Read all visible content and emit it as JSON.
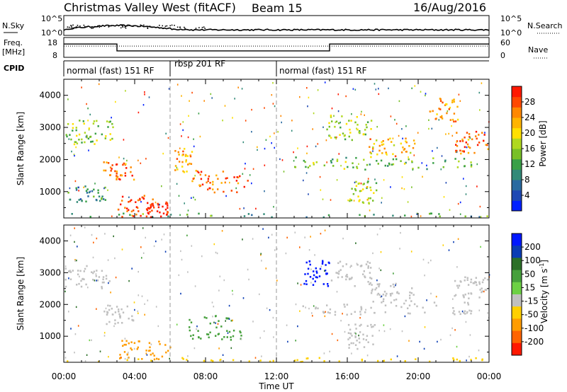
{
  "header": {
    "station": "Christmas Valley West (fitACF)",
    "beam": "Beam 15",
    "date": "16/Aug/2016"
  },
  "colors": {
    "scatter": "#000000",
    "ground_scatter": "#c0c0c0"
  },
  "chart_data": [
    {
      "type": "line",
      "panel": "noise",
      "left_label": "N.Sky",
      "right_label": "N.Search",
      "left_ticks": [
        "10^5",
        "10^0"
      ],
      "right_ticks": [
        "10^5",
        "10^0"
      ]
    },
    {
      "type": "line",
      "panel": "frequency",
      "left_label": "Freq.",
      "left_unit": "[MHz]",
      "left_ticks": [
        18,
        8
      ],
      "right_label": "Nave",
      "right_ticks": [
        60,
        0
      ],
      "frequency_segments": [
        {
          "start_hour": 0,
          "end_hour": 3,
          "mhz": 15.4
        },
        {
          "start_hour": 3,
          "end_hour": 15,
          "mhz": 10.6
        },
        {
          "start_hour": 15,
          "end_hour": 24,
          "mhz": 15.4
        }
      ],
      "nave_level": 30
    },
    {
      "type": "table",
      "panel": "cpid",
      "label": "CPID",
      "segments": [
        {
          "start_hour": 0,
          "end_hour": 6,
          "name": "normal (fast) 151 RF"
        },
        {
          "start_hour": 6,
          "end_hour": 12,
          "name": "rbsp 201 RF"
        },
        {
          "start_hour": 12,
          "end_hour": 24,
          "name": "normal (fast) 151 RF"
        }
      ]
    },
    {
      "type": "heatmap",
      "panel": "power",
      "ylabel": "Slant Range [km]",
      "ylim": [
        180,
        4500
      ],
      "yticks": [
        1000,
        2000,
        3000,
        4000
      ],
      "xlim": [
        0,
        24
      ],
      "colorbar_label": "Power [dB]",
      "colorbar_ticks": [
        4,
        8,
        12,
        16,
        20,
        24,
        28
      ],
      "colorbar_range": [
        0,
        32
      ],
      "colorbar_colors": [
        "#0020ff",
        "#1e48b4",
        "#2a6aa0",
        "#328a78",
        "#3aa048",
        "#78c028",
        "#b0d820",
        "#ffe000",
        "#ffb400",
        "#ff8800",
        "#ff4800",
        "#ff1800"
      ],
      "regions": [
        {
          "t0": 0.0,
          "t1": 2.8,
          "r0": 2500,
          "r1": 3250,
          "level": 16
        },
        {
          "t0": 0.2,
          "t1": 2.4,
          "r0": 700,
          "r1": 1200,
          "level": 10
        },
        {
          "t0": 2.2,
          "t1": 4.0,
          "r0": 1400,
          "r1": 2000,
          "level": 26
        },
        {
          "t0": 3.0,
          "t1": 5.0,
          "r0": 200,
          "r1": 900,
          "level": 29
        },
        {
          "t0": 4.6,
          "t1": 6.0,
          "r0": 180,
          "r1": 700,
          "level": 30
        },
        {
          "t0": 6.2,
          "t1": 7.2,
          "r0": 1600,
          "r1": 2400,
          "level": 24
        },
        {
          "t0": 7.2,
          "t1": 10.4,
          "r0": 1000,
          "r1": 1700,
          "level": 26
        },
        {
          "t0": 14.8,
          "t1": 17.4,
          "r0": 2600,
          "r1": 3400,
          "level": 16
        },
        {
          "t0": 17.2,
          "t1": 19.8,
          "r0": 2100,
          "r1": 2700,
          "level": 22
        },
        {
          "t0": 20.6,
          "t1": 22.2,
          "r0": 3200,
          "r1": 4000,
          "level": 24
        },
        {
          "t0": 22.0,
          "t1": 24.0,
          "r0": 2200,
          "r1": 2900,
          "level": 26
        },
        {
          "t0": 13.0,
          "t1": 23.0,
          "r0": 1700,
          "r1": 2100,
          "level": 14
        },
        {
          "t0": 16.0,
          "t1": 17.6,
          "r0": 600,
          "r1": 1400,
          "level": 18
        },
        {
          "t0": 0.0,
          "t1": 24.0,
          "r0": 180,
          "r1": 350,
          "level": 12
        }
      ]
    },
    {
      "type": "heatmap",
      "panel": "velocity",
      "ylabel": "Slant Range [km]",
      "ylim": [
        180,
        4500
      ],
      "yticks": [
        1000,
        2000,
        3000,
        4000
      ],
      "xlim": [
        0,
        24
      ],
      "colorbar_label": "Velocity [m s",
      "colorbar_label_sup": "-1",
      "colorbar_label_end": "]",
      "colorbar_ticks": [
        200,
        100,
        50,
        15,
        -15,
        -50,
        -100,
        -200
      ],
      "colorbar_colors": [
        "#0018ff",
        "#0a3cb4",
        "#2c7028",
        "#46a03c",
        "#6cd044",
        "#c0c0c0",
        "#ffd000",
        "#ff9c00",
        "#ff6400",
        "#ff1800"
      ],
      "regions": [
        {
          "t0": 0.0,
          "t1": 2.8,
          "r0": 2500,
          "r1": 3250,
          "level": 0
        },
        {
          "t0": 2.2,
          "t1": 4.0,
          "r0": 1400,
          "r1": 2000,
          "level": 0
        },
        {
          "t0": 3.0,
          "t1": 6.0,
          "r0": 300,
          "r1": 900,
          "level": -60
        },
        {
          "t0": 7.0,
          "t1": 10.0,
          "r0": 900,
          "r1": 1700,
          "level": 40
        },
        {
          "t0": 13.5,
          "t1": 15.0,
          "r0": 2600,
          "r1": 3400,
          "level": 220
        },
        {
          "t0": 15.0,
          "t1": 17.4,
          "r0": 2600,
          "r1": 3400,
          "level": 0
        },
        {
          "t0": 17.2,
          "t1": 19.8,
          "r0": 2100,
          "r1": 2700,
          "level": 0
        },
        {
          "t0": 22.0,
          "t1": 24.0,
          "r0": 2200,
          "r1": 2900,
          "level": 0
        },
        {
          "t0": 13.0,
          "t1": 23.0,
          "r0": 1700,
          "r1": 2100,
          "level": 0
        },
        {
          "t0": 16.0,
          "t1": 17.6,
          "r0": 600,
          "r1": 1400,
          "level": 0
        },
        {
          "t0": 0.0,
          "t1": 24.0,
          "r0": 180,
          "r1": 350,
          "level": -40
        }
      ]
    }
  ],
  "xaxis": {
    "label": "Time UT",
    "ticks": [
      "00:00",
      "04:00",
      "08:00",
      "12:00",
      "16:00",
      "20:00",
      "00:00"
    ],
    "tick_hours": [
      0,
      4,
      8,
      12,
      16,
      20,
      24
    ]
  }
}
